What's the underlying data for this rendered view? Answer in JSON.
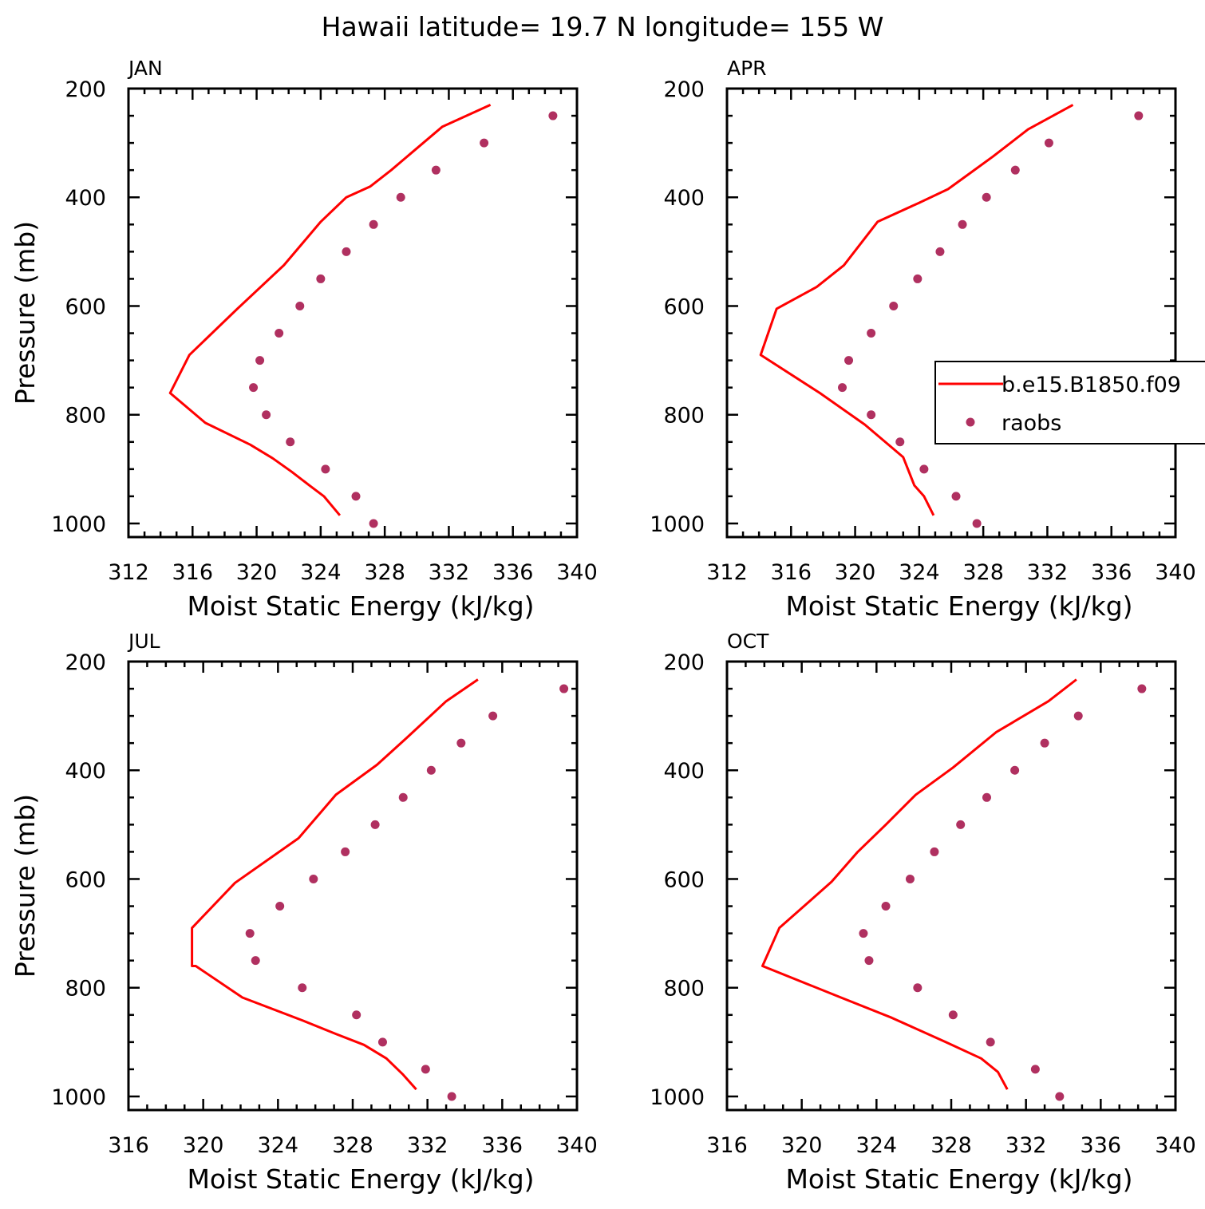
{
  "title": "Hawaii  latitude= 19.7 N longitude= 155 W",
  "colors": {
    "model": "#ff0000",
    "obs": "#b03060",
    "axis": "#000000",
    "background": "#ffffff"
  },
  "legend": {
    "model_label": "b.e15.B1850.f09",
    "obs_label": "raobs",
    "placement": "right side of APR panel, clipped"
  },
  "chart_data": [
    {
      "type": "line",
      "panel": "JAN",
      "xlabel": "Moist Static Energy (kJ/kg)",
      "ylabel": "Pressure (mb)",
      "xlim": [
        312,
        340
      ],
      "ylim": [
        200,
        1025
      ],
      "y_inverted": true,
      "xticks": [
        312,
        316,
        320,
        324,
        328,
        332,
        336,
        340
      ],
      "yticks": [
        200,
        400,
        600,
        800,
        1000
      ],
      "series": [
        {
          "name": "b.e15.B1850.f09",
          "kind": "line",
          "x": [
            334.6,
            331.6,
            329.6,
            328.4,
            327.1,
            325.6,
            324.0,
            321.7,
            318.8,
            315.8,
            314.6,
            316.8,
            319.6,
            321.0,
            322.2,
            323.3,
            324.2,
            325.2
          ],
          "y": [
            230,
            270,
            320,
            350,
            380,
            400,
            445,
            525,
            605,
            690,
            760,
            815,
            855,
            880,
            905,
            930,
            950,
            985
          ]
        },
        {
          "name": "raobs",
          "kind": "scatter",
          "x": [
            338.5,
            334.2,
            331.2,
            329.0,
            327.3,
            325.6,
            324.0,
            322.7,
            321.4,
            320.2,
            319.8,
            320.6,
            322.1,
            324.3,
            326.2,
            327.3
          ],
          "y": [
            250,
            300,
            350,
            400,
            450,
            500,
            550,
            600,
            650,
            700,
            750,
            800,
            850,
            900,
            950,
            1000
          ]
        }
      ]
    },
    {
      "type": "line",
      "panel": "APR",
      "xlabel": "Moist Static Energy (kJ/kg)",
      "ylabel": "",
      "xlim": [
        312,
        340
      ],
      "ylim": [
        200,
        1025
      ],
      "y_inverted": true,
      "xticks": [
        312,
        316,
        320,
        324,
        328,
        332,
        336,
        340
      ],
      "yticks": [
        200,
        400,
        600,
        800,
        1000
      ],
      "series": [
        {
          "name": "b.e15.B1850.f09",
          "kind": "line",
          "x": [
            333.6,
            330.8,
            328.6,
            327.2,
            325.8,
            324.0,
            321.4,
            319.3,
            317.6,
            315.1,
            314.1,
            317.8,
            320.6,
            323.0,
            323.7,
            324.3,
            324.9
          ],
          "y": [
            230,
            275,
            325,
            355,
            385,
            410,
            445,
            525,
            565,
            605,
            690,
            760,
            818,
            878,
            930,
            950,
            985
          ]
        },
        {
          "name": "raobs",
          "kind": "scatter",
          "x": [
            337.7,
            332.1,
            330.0,
            328.2,
            326.7,
            325.3,
            323.9,
            322.4,
            321.0,
            319.6,
            319.2,
            321.0,
            322.8,
            324.3,
            326.3,
            327.6
          ],
          "y": [
            250,
            300,
            350,
            400,
            450,
            500,
            550,
            600,
            650,
            700,
            750,
            800,
            850,
            900,
            950,
            1000
          ]
        }
      ]
    },
    {
      "type": "line",
      "panel": "JUL",
      "xlabel": "Moist Static Energy (kJ/kg)",
      "ylabel": "Pressure (mb)",
      "xlim": [
        316,
        340
      ],
      "ylim": [
        200,
        1025
      ],
      "y_inverted": true,
      "xticks": [
        316,
        320,
        324,
        328,
        332,
        336,
        340
      ],
      "yticks": [
        200,
        400,
        600,
        800,
        1000
      ],
      "series": [
        {
          "name": "b.e15.B1850.f09",
          "kind": "line",
          "x": [
            334.7,
            333.0,
            330.9,
            329.3,
            327.1,
            325.1,
            321.7,
            319.4,
            319.4,
            319.6,
            322.1,
            325.3,
            327.1,
            328.6,
            329.8,
            330.7,
            331.4
          ],
          "y": [
            233,
            273,
            340,
            390,
            445,
            525,
            607,
            690,
            760,
            760,
            818,
            860,
            885,
            905,
            930,
            960,
            987
          ]
        },
        {
          "name": "raobs",
          "kind": "scatter",
          "x": [
            339.3,
            335.5,
            333.8,
            332.2,
            330.7,
            329.2,
            327.6,
            325.9,
            324.1,
            322.5,
            322.8,
            325.3,
            328.2,
            329.6,
            331.9,
            333.3
          ],
          "y": [
            250,
            300,
            350,
            400,
            450,
            500,
            550,
            600,
            650,
            700,
            750,
            800,
            850,
            900,
            950,
            1000
          ]
        }
      ]
    },
    {
      "type": "line",
      "panel": "OCT",
      "xlabel": "Moist Static Energy (kJ/kg)",
      "ylabel": "",
      "xlim": [
        316,
        340
      ],
      "ylim": [
        200,
        1025
      ],
      "y_inverted": true,
      "xticks": [
        316,
        320,
        324,
        328,
        332,
        336,
        340
      ],
      "yticks": [
        200,
        400,
        600,
        800,
        1000
      ],
      "series": [
        {
          "name": "b.e15.B1850.f09",
          "kind": "line",
          "x": [
            334.7,
            333.2,
            330.4,
            328.1,
            326.1,
            324.5,
            323.0,
            321.6,
            318.8,
            317.9,
            322.1,
            324.8,
            327.7,
            329.6,
            330.5,
            331.0
          ],
          "y": [
            233,
            273,
            330,
            395,
            445,
            500,
            550,
            605,
            690,
            760,
            818,
            855,
            900,
            930,
            955,
            987
          ]
        },
        {
          "name": "raobs",
          "kind": "scatter",
          "x": [
            338.2,
            334.8,
            333.0,
            331.4,
            329.9,
            328.5,
            327.1,
            325.8,
            324.5,
            323.3,
            323.6,
            326.2,
            328.1,
            330.1,
            332.5,
            333.8
          ],
          "y": [
            250,
            300,
            350,
            400,
            450,
            500,
            550,
            600,
            650,
            700,
            750,
            800,
            850,
            900,
            950,
            1000
          ]
        }
      ]
    }
  ]
}
